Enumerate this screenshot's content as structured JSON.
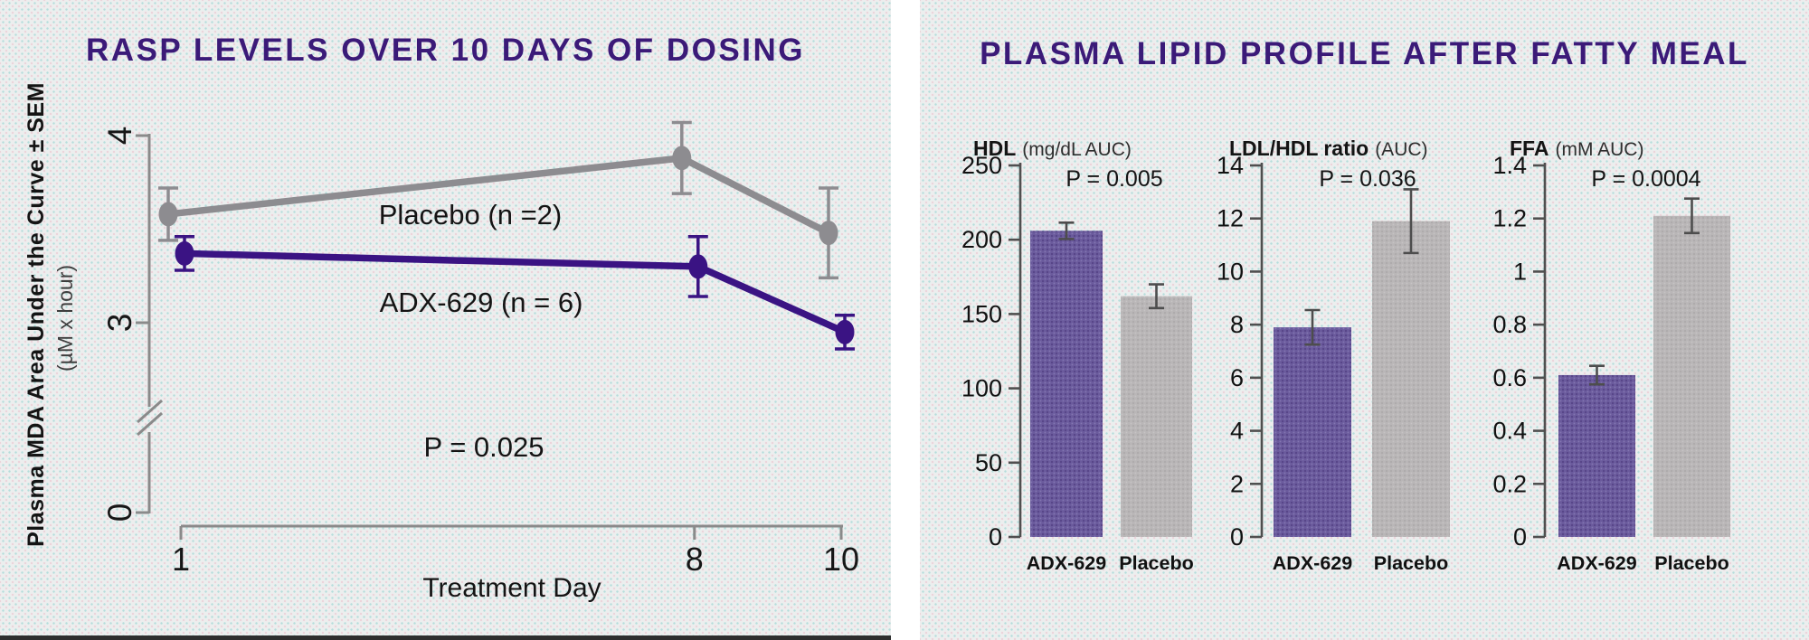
{
  "colors": {
    "title_purple": "#3b1a78",
    "placebo_line_gray": "#8d8c90",
    "adx_line_purple": "#3a1383",
    "bar_purple": "#6a5a9c",
    "bar_gray": "#b9b6b7",
    "axis_gray_line_chart": "#8a8a8a",
    "axis_dark_bar_chart": "#4f4f4f",
    "error_bar_dark": "#4d4d4d",
    "panel_background": "#eceeee"
  },
  "chart_data": [
    {
      "type": "line",
      "title": "RASP LEVELS OVER 10 DAYS OF DOSING",
      "xlabel": "Treatment Day",
      "ylabel": "Plasma MDA Area Under the Curve ± SEM",
      "ylabel_units": "(µM x hour)",
      "x": [
        1,
        8,
        10
      ],
      "xtick_labels": [
        "1",
        "8",
        "10"
      ],
      "yticks": [
        {
          "label": "4",
          "value": 4
        },
        {
          "label": "3",
          "value": 3
        },
        {
          "label": "0",
          "value": 0
        }
      ],
      "axis_break": true,
      "ylim_visible": [
        3,
        4
      ],
      "annotation": "P = 0.025",
      "series": [
        {
          "name": "Placebo (n =2)",
          "color": "#8d8c90",
          "values": [
            3.58,
            3.88,
            3.48
          ],
          "sem": [
            0.14,
            0.19,
            0.24
          ]
        },
        {
          "name": "ADX-629 (n = 6)",
          "color": "#3a1383",
          "values": [
            3.37,
            3.3,
            2.95
          ],
          "sem": [
            0.09,
            0.16,
            0.09
          ]
        }
      ],
      "legend": {
        "placebo": "Placebo (n =2)",
        "adx": "ADX-629 (n = 6)"
      }
    },
    {
      "type": "bar",
      "title": "PLASMA LIPID PROFILE AFTER FATTY MEAL",
      "categories": [
        "ADX-629",
        "Placebo"
      ],
      "series_colors": [
        "#6a5a9c",
        "#b9b6b7"
      ],
      "subplots": [
        {
          "name": "HDL",
          "units": "(mg/dL AUC)",
          "p": "P = 0.005",
          "ymax": 250,
          "yticks": [
            0,
            50,
            100,
            150,
            200,
            250
          ],
          "values": [
            206,
            162
          ],
          "errors": [
            5.5,
            8
          ]
        },
        {
          "name": "LDL/HDL ratio",
          "units": "(AUC)",
          "p": "P = 0.036",
          "ymax": 14,
          "yticks": [
            0,
            2,
            4,
            6,
            8,
            10,
            12,
            14
          ],
          "values": [
            7.9,
            11.9
          ],
          "errors": [
            0.65,
            1.2
          ]
        },
        {
          "name": "FFA",
          "units": "(mM AUC)",
          "p": "P = 0.0004",
          "ymax": 1.4,
          "yticks": [
            0,
            0.2,
            0.4,
            0.6,
            0.8,
            1,
            1.2,
            1.4
          ],
          "values": [
            0.61,
            1.21
          ],
          "errors": [
            0.035,
            0.065
          ]
        }
      ]
    }
  ]
}
